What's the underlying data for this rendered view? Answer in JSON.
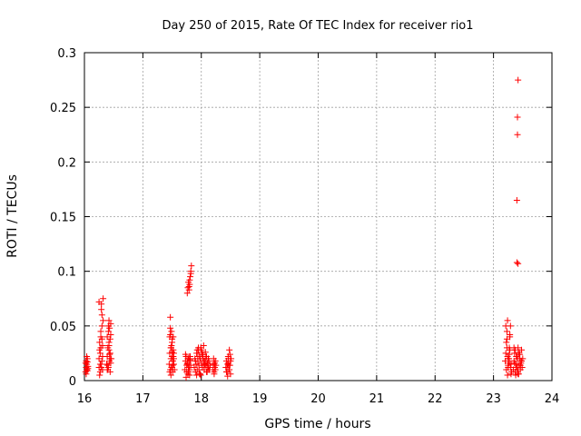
{
  "chart_data": {
    "type": "scatter",
    "title": "Day 250 of 2015, Rate Of TEC Index for receiver rio1",
    "xlabel": "GPS time / hours",
    "ylabel": "ROTI / TECUs",
    "xlim": [
      16,
      24
    ],
    "ylim": [
      0,
      0.3
    ],
    "xticks": [
      16,
      17,
      18,
      19,
      20,
      21,
      22,
      23,
      24
    ],
    "yticks": [
      0,
      0.05,
      0.1,
      0.15,
      0.2,
      0.25,
      0.3
    ],
    "xtick_labels": [
      "16",
      "17",
      "18",
      "19",
      "20",
      "21",
      "22",
      "23",
      "24"
    ],
    "ytick_labels": [
      "0",
      "0.05",
      "0.1",
      "0.15",
      "0.2",
      "0.25",
      "0.3"
    ],
    "grid": true,
    "marker": "+",
    "color": "#ff0000",
    "series": [
      {
        "name": "rio1",
        "x": [
          16.02,
          16.03,
          16.03,
          16.04,
          16.04,
          16.05,
          16.05,
          16.06,
          16.02,
          16.04,
          16.06,
          16.03,
          16.05,
          16.25,
          16.25,
          16.26,
          16.26,
          16.27,
          16.27,
          16.28,
          16.28,
          16.29,
          16.29,
          16.3,
          16.3,
          16.31,
          16.31,
          16.32,
          16.32,
          16.27,
          16.28,
          16.3,
          16.26,
          16.29,
          16.31,
          16.25,
          16.3,
          16.28,
          16.38,
          16.39,
          16.39,
          16.4,
          16.4,
          16.41,
          16.41,
          16.42,
          16.42,
          16.43,
          16.43,
          16.44,
          16.44,
          16.45,
          16.45,
          16.46,
          16.4,
          16.42,
          16.44,
          16.41,
          16.43,
          16.45,
          16.39,
          16.42,
          16.44,
          17.45,
          17.46,
          17.46,
          17.47,
          17.47,
          17.48,
          17.48,
          17.49,
          17.49,
          17.5,
          17.5,
          17.51,
          17.51,
          17.52,
          17.52,
          17.53,
          17.53,
          17.54,
          17.47,
          17.49,
          17.51,
          17.48,
          17.5,
          17.52,
          17.46,
          17.5,
          17.53,
          17.48,
          17.51,
          17.47,
          17.5,
          17.72,
          17.73,
          17.74,
          17.75,
          17.76,
          17.77,
          17.78,
          17.79,
          17.8,
          17.81,
          17.82,
          17.74,
          17.76,
          17.78,
          17.8,
          17.73,
          17.77,
          17.79,
          17.81,
          17.75,
          17.78,
          17.8,
          17.76,
          17.77,
          17.78,
          17.79,
          17.8,
          17.81,
          17.82,
          17.83,
          17.79,
          17.8,
          17.82,
          17.88,
          17.89,
          17.9,
          17.91,
          17.92,
          17.93,
          17.94,
          17.95,
          17.96,
          17.97,
          17.98,
          17.99,
          18.0,
          18.01,
          18.02,
          18.03,
          18.04,
          18.05,
          18.06,
          18.07,
          18.08,
          18.09,
          18.1,
          18.11,
          18.12,
          18.13,
          18.14,
          18.15,
          17.92,
          17.95,
          17.98,
          18.0,
          18.03,
          18.06,
          18.09,
          18.12,
          17.9,
          17.96,
          18.01,
          18.05,
          18.1,
          17.94,
          17.99,
          18.04,
          18.08,
          18.13,
          17.93,
          17.97,
          18.02,
          18.07,
          18.11,
          18.2,
          18.21,
          18.22,
          18.23,
          18.24,
          18.25,
          18.22,
          18.24,
          18.21,
          18.23,
          18.42,
          18.43,
          18.44,
          18.45,
          18.46,
          18.47,
          18.48,
          18.49,
          18.5,
          18.51,
          18.44,
          18.46,
          18.48,
          18.5,
          18.45,
          18.47,
          18.49,
          18.43,
          18.46,
          23.2,
          23.21,
          23.22,
          23.23,
          23.24,
          23.25,
          23.26,
          23.27,
          23.28,
          23.29,
          23.3,
          23.31,
          23.22,
          23.24,
          23.26,
          23.28,
          23.3,
          23.21,
          23.23,
          23.25,
          23.27,
          23.29,
          23.23,
          23.26,
          23.28,
          23.24,
          23.27,
          23.34,
          23.35,
          23.36,
          23.37,
          23.38,
          23.39,
          23.4,
          23.41,
          23.42,
          23.43,
          23.44,
          23.45,
          23.46,
          23.47,
          23.48,
          23.49,
          23.5,
          23.36,
          23.38,
          23.4,
          23.42,
          23.44,
          23.46,
          23.48,
          23.37,
          23.41,
          23.45,
          23.39,
          23.43,
          23.47,
          23.35,
          23.42,
          23.4,
          23.4,
          23.41,
          23.41,
          23.42,
          23.42
        ],
        "y": [
          0.008,
          0.012,
          0.018,
          0.01,
          0.015,
          0.02,
          0.009,
          0.013,
          0.016,
          0.022,
          0.011,
          0.006,
          0.017,
          0.012,
          0.02,
          0.028,
          0.035,
          0.015,
          0.025,
          0.04,
          0.03,
          0.065,
          0.07,
          0.018,
          0.038,
          0.022,
          0.01,
          0.055,
          0.075,
          0.008,
          0.045,
          0.06,
          0.005,
          0.012,
          0.032,
          0.072,
          0.05,
          0.015,
          0.015,
          0.022,
          0.04,
          0.01,
          0.03,
          0.05,
          0.012,
          0.055,
          0.035,
          0.018,
          0.048,
          0.025,
          0.008,
          0.042,
          0.052,
          0.02,
          0.014,
          0.028,
          0.038,
          0.045,
          0.024,
          0.016,
          0.01,
          0.032,
          0.02,
          0.015,
          0.025,
          0.04,
          0.058,
          0.01,
          0.02,
          0.03,
          0.045,
          0.012,
          0.022,
          0.035,
          0.008,
          0.018,
          0.028,
          0.04,
          0.015,
          0.025,
          0.01,
          0.048,
          0.032,
          0.018,
          0.005,
          0.012,
          0.022,
          0.008,
          0.038,
          0.02,
          0.03,
          0.014,
          0.042,
          0.026,
          0.01,
          0.018,
          0.022,
          0.008,
          0.015,
          0.02,
          0.012,
          0.018,
          0.005,
          0.022,
          0.014,
          0.003,
          0.016,
          0.02,
          0.01,
          0.024,
          0.006,
          0.012,
          0.019,
          0.014,
          0.008,
          0.022,
          0.08,
          0.085,
          0.09,
          0.086,
          0.092,
          0.095,
          0.1,
          0.105,
          0.083,
          0.088,
          0.098,
          0.012,
          0.02,
          0.008,
          0.015,
          0.025,
          0.01,
          0.018,
          0.028,
          0.014,
          0.022,
          0.006,
          0.03,
          0.016,
          0.024,
          0.012,
          0.02,
          0.032,
          0.01,
          0.018,
          0.026,
          0.014,
          0.022,
          0.008,
          0.016,
          0.012,
          0.018,
          0.01,
          0.014,
          0.005,
          0.03,
          0.02,
          0.028,
          0.024,
          0.015,
          0.008,
          0.02,
          0.018,
          0.01,
          0.026,
          0.012,
          0.016,
          0.022,
          0.005,
          0.018,
          0.014,
          0.01,
          0.028,
          0.006,
          0.024,
          0.02,
          0.012,
          0.01,
          0.015,
          0.008,
          0.012,
          0.018,
          0.014,
          0.006,
          0.01,
          0.02,
          0.016,
          0.012,
          0.018,
          0.008,
          0.015,
          0.022,
          0.01,
          0.028,
          0.014,
          0.006,
          0.02,
          0.012,
          0.016,
          0.01,
          0.018,
          0.004,
          0.014,
          0.024,
          0.008,
          0.02,
          0.018,
          0.025,
          0.035,
          0.045,
          0.055,
          0.012,
          0.02,
          0.03,
          0.04,
          0.05,
          0.015,
          0.008,
          0.01,
          0.022,
          0.016,
          0.028,
          0.006,
          0.05,
          0.038,
          0.014,
          0.024,
          0.012,
          0.03,
          0.02,
          0.042,
          0.005,
          0.018,
          0.01,
          0.018,
          0.025,
          0.008,
          0.015,
          0.022,
          0.012,
          0.02,
          0.03,
          0.006,
          0.014,
          0.024,
          0.01,
          0.018,
          0.028,
          0.012,
          0.02,
          0.016,
          0.005,
          0.022,
          0.01,
          0.026,
          0.014,
          0.018,
          0.028,
          0.008,
          0.02,
          0.012,
          0.024,
          0.016,
          0.03,
          0.006,
          0.165,
          0.108,
          0.225,
          0.241,
          0.275,
          0.107
        ]
      }
    ]
  }
}
